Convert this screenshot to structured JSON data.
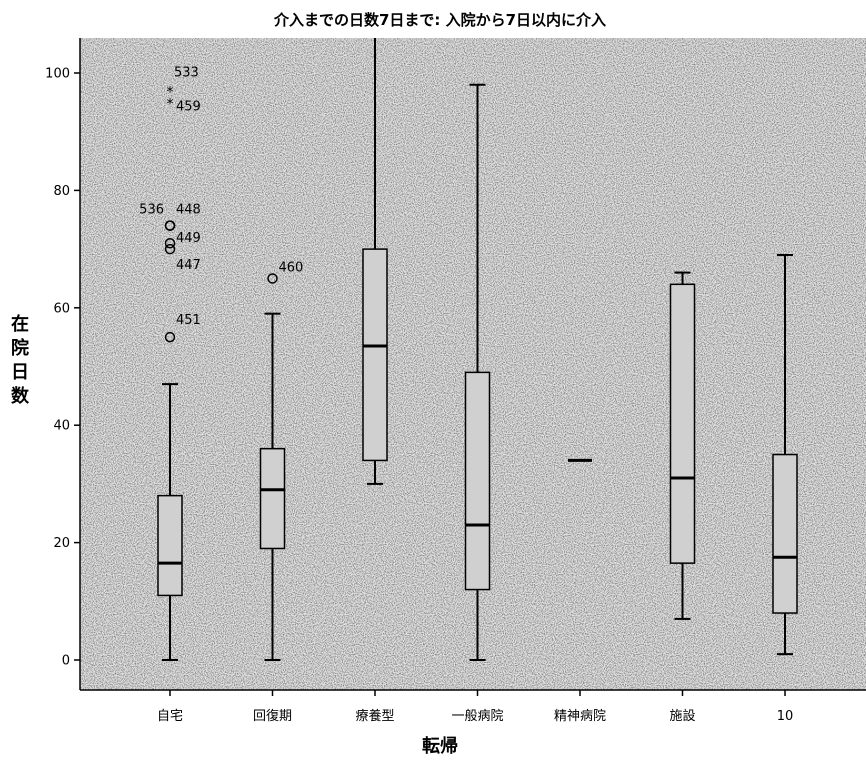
{
  "chart_data": {
    "type": "box",
    "title": "介入までの日数7日まで: 入院から7日以内に介入",
    "xlabel": "転帰",
    "ylabel": "在院日数",
    "ylim": [
      -5,
      106
    ],
    "yticks": [
      0,
      20,
      40,
      60,
      80,
      100
    ],
    "grid": false,
    "categories": [
      "自宅",
      "回復期",
      "療養型",
      "一般病院",
      "精神病院",
      "施設",
      "10"
    ],
    "boxes": [
      {
        "category": "自宅",
        "whisker_low": 0,
        "q1": 11,
        "median": 16.5,
        "q3": 28,
        "whisker_high": 47,
        "outliers": [
          {
            "label": "533",
            "value": 97,
            "marker": "star"
          },
          {
            "label": "459",
            "value": 95,
            "marker": "star"
          },
          {
            "label": "536",
            "value": 74,
            "marker": "circle"
          },
          {
            "label": "448",
            "value": 74,
            "marker": "circle"
          },
          {
            "label": "449",
            "value": 71,
            "marker": "circle"
          },
          {
            "label": "447",
            "value": 70,
            "marker": "circle"
          },
          {
            "label": "451",
            "value": 55,
            "marker": "circle"
          }
        ]
      },
      {
        "category": "回復期",
        "whisker_low": 0,
        "q1": 19,
        "median": 29,
        "q3": 36,
        "whisker_high": 59,
        "outliers": [
          {
            "label": "460",
            "value": 65,
            "marker": "circle"
          }
        ]
      },
      {
        "category": "療養型",
        "whisker_low": 30,
        "q1": 34,
        "median": 53.5,
        "q3": 70,
        "whisker_high": 106,
        "outliers": []
      },
      {
        "category": "一般病院",
        "whisker_low": 0,
        "q1": 12,
        "median": 23,
        "q3": 49,
        "whisker_high": 98,
        "outliers": []
      },
      {
        "category": "精神病院",
        "whisker_low": 34,
        "q1": 34,
        "median": 34,
        "q3": 34,
        "whisker_high": 34,
        "outliers": []
      },
      {
        "category": "施設",
        "whisker_low": 7,
        "q1": 16.5,
        "median": 31,
        "q3": 64,
        "whisker_high": 66,
        "outliers": []
      },
      {
        "category": "10",
        "whisker_low": 1,
        "q1": 8,
        "median": 17.5,
        "q3": 35,
        "whisker_high": 69,
        "outliers": []
      }
    ],
    "colors": {
      "box_fill": "#d0d0d0",
      "plot_background": "#e6e6e6",
      "line": "#000000"
    }
  }
}
